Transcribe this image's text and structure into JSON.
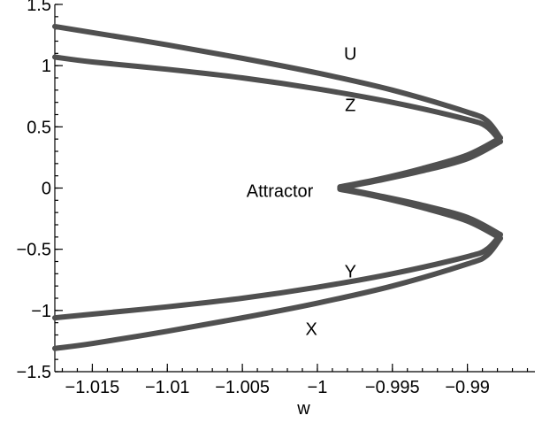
{
  "chart_data": {
    "type": "line",
    "title": "",
    "xlabel": "w",
    "ylabel": "",
    "xlim": [
      -1.0175,
      -0.9855
    ],
    "ylim": [
      -1.5,
      1.5
    ],
    "x_ticks": [
      -1.015,
      -1.01,
      -1.005,
      -1,
      -0.995,
      -0.99
    ],
    "x_tick_labels": [
      "−1.015",
      "−1.01",
      "−1.005",
      "−1",
      "−0.995",
      "−0.99"
    ],
    "y_ticks": [
      1.5,
      1,
      0.5,
      0,
      -0.5,
      -1,
      -1.5
    ],
    "y_tick_labels": [
      "1.5",
      "1",
      "0.5",
      "0",
      "−0.5",
      "−1",
      "−1.5"
    ],
    "grid": false,
    "legend": "none",
    "line_color": "#505050",
    "series": [
      {
        "label_text": "U",
        "x": [
          -1.0175,
          -1.015,
          -1.01,
          -1.005,
          -1.0,
          -0.995,
          -0.99,
          -0.9887,
          -0.9878
        ],
        "y": [
          1.32,
          1.27,
          1.17,
          1.06,
          0.94,
          0.8,
          0.62,
          0.55,
          0.41
        ]
      },
      {
        "label_text": "Z",
        "x": [
          -1.0175,
          -1.015,
          -1.01,
          -1.005,
          -1.0,
          -0.995,
          -0.99,
          -0.9887,
          -0.9878
        ],
        "y": [
          1.07,
          1.03,
          0.97,
          0.9,
          0.81,
          0.7,
          0.56,
          0.5,
          0.38
        ]
      },
      {
        "label_text": "",
        "x": [
          -0.9878,
          -0.99,
          -0.993,
          -0.996,
          -0.9985
        ],
        "y": [
          0.41,
          0.27,
          0.16,
          0.07,
          0.01
        ]
      },
      {
        "label_text": "",
        "x": [
          -0.9878,
          -0.99,
          -0.993,
          -0.996,
          -0.9985
        ],
        "y": [
          0.38,
          0.24,
          0.14,
          0.06,
          0.0
        ]
      },
      {
        "label_text": "",
        "x": [
          -0.9878,
          -0.99,
          -0.993,
          -0.996,
          -0.9985
        ],
        "y": [
          -0.41,
          -0.27,
          -0.16,
          -0.07,
          -0.01
        ]
      },
      {
        "label_text": "",
        "x": [
          -0.9878,
          -0.99,
          -0.993,
          -0.996,
          -0.9985
        ],
        "y": [
          -0.38,
          -0.24,
          -0.14,
          -0.06,
          0.0
        ]
      },
      {
        "label_text": "Y",
        "x": [
          -1.0175,
          -1.015,
          -1.01,
          -1.005,
          -1.0,
          -0.995,
          -0.99,
          -0.9887,
          -0.9878
        ],
        "y": [
          -1.06,
          -1.03,
          -0.97,
          -0.9,
          -0.81,
          -0.7,
          -0.56,
          -0.5,
          -0.38
        ]
      },
      {
        "label_text": "X",
        "x": [
          -1.0175,
          -1.015,
          -1.01,
          -1.005,
          -1.0,
          -0.995,
          -0.99,
          -0.9887,
          -0.9878
        ],
        "y": [
          -1.31,
          -1.27,
          -1.17,
          -1.06,
          -0.94,
          -0.8,
          -0.62,
          -0.55,
          -0.41
        ]
      }
    ],
    "annotations": [
      {
        "text": "U",
        "x": -0.9978,
        "y": 1.1
      },
      {
        "text": "Z",
        "x": -0.9978,
        "y": 0.68
      },
      {
        "text": "Attractor",
        "x": -1.0025,
        "y": -0.02
      },
      {
        "text": "Y",
        "x": -0.9978,
        "y": -0.68
      },
      {
        "text": "X",
        "x": -1.0004,
        "y": -1.15
      }
    ]
  }
}
